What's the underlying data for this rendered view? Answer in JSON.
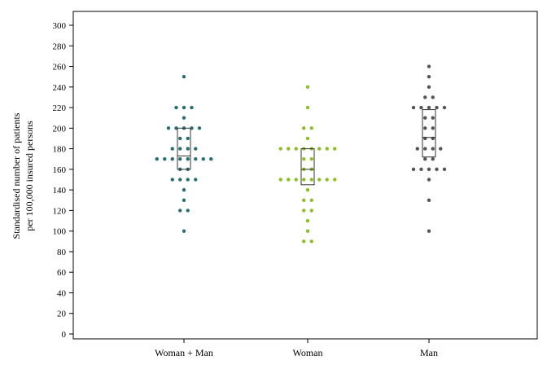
{
  "chart_data": {
    "type": "scatter",
    "subtype": "dot-strip-with-box",
    "title": "",
    "xlabel": "",
    "ylabel_lines": [
      "Standardised number of patients",
      "per 100,000 insured persons"
    ],
    "categories": [
      "Woman + Man",
      "Woman",
      "Man"
    ],
    "ylim": [
      0,
      310
    ],
    "yticks": [
      0,
      20,
      40,
      60,
      80,
      100,
      120,
      140,
      160,
      180,
      200,
      220,
      240,
      260,
      280,
      300
    ],
    "grid": false,
    "legend": "none",
    "series": [
      {
        "category": "Woman + Man",
        "color": "#2a6e72",
        "box": {
          "q1": 160,
          "median": 173,
          "q3": 200
        },
        "values": [
          250,
          220,
          220,
          220,
          210,
          200,
          200,
          200,
          200,
          200,
          190,
          190,
          180,
          180,
          180,
          180,
          170,
          170,
          170,
          170,
          170,
          170,
          170,
          170,
          160,
          160,
          150,
          150,
          150,
          150,
          140,
          130,
          120,
          120,
          100
        ]
      },
      {
        "category": "Woman",
        "color": "#8cc022",
        "box": {
          "q1": 145,
          "median": 160,
          "q3": 180
        },
        "values": [
          240,
          220,
          200,
          200,
          190,
          180,
          180,
          180,
          180,
          180,
          180,
          180,
          180,
          170,
          170,
          160,
          160,
          150,
          150,
          150,
          150,
          150,
          150,
          150,
          150,
          140,
          130,
          130,
          120,
          120,
          110,
          100,
          90,
          90
        ]
      },
      {
        "category": "Man",
        "color": "#555555",
        "box": {
          "q1": 172,
          "median": 191,
          "q3": 218
        },
        "values": [
          260,
          250,
          240,
          230,
          230,
          220,
          220,
          220,
          220,
          220,
          210,
          210,
          200,
          200,
          190,
          190,
          180,
          180,
          180,
          180,
          170,
          170,
          160,
          160,
          160,
          160,
          160,
          150,
          130,
          100
        ]
      }
    ]
  }
}
